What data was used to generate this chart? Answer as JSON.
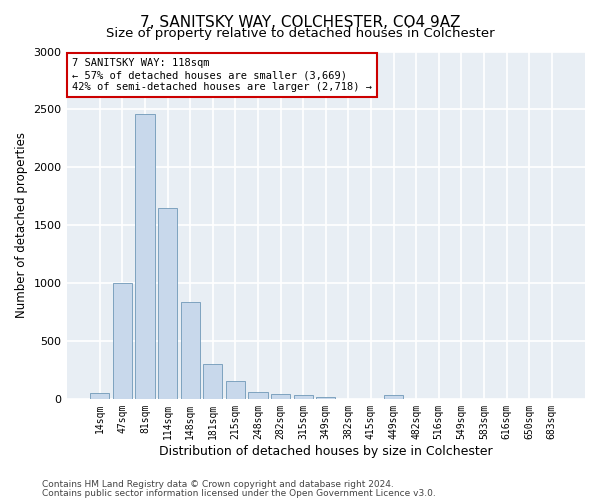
{
  "title": "7, SANITSKY WAY, COLCHESTER, CO4 9AZ",
  "subtitle": "Size of property relative to detached houses in Colchester",
  "xlabel": "Distribution of detached houses by size in Colchester",
  "ylabel": "Number of detached properties",
  "categories": [
    "14sqm",
    "47sqm",
    "81sqm",
    "114sqm",
    "148sqm",
    "181sqm",
    "215sqm",
    "248sqm",
    "282sqm",
    "315sqm",
    "349sqm",
    "382sqm",
    "415sqm",
    "449sqm",
    "482sqm",
    "516sqm",
    "549sqm",
    "583sqm",
    "616sqm",
    "650sqm",
    "683sqm"
  ],
  "values": [
    50,
    1000,
    2460,
    1650,
    840,
    300,
    150,
    55,
    40,
    30,
    20,
    0,
    0,
    30,
    0,
    0,
    0,
    0,
    0,
    0,
    0
  ],
  "bar_color": "#c8d8eb",
  "bar_edge_color": "#7098b8",
  "annotation_text": "7 SANITSKY WAY: 118sqm\n← 57% of detached houses are smaller (3,669)\n42% of semi-detached houses are larger (2,718) →",
  "annotation_box_color": "#ffffff",
  "annotation_box_edge_color": "#cc0000",
  "ylim": [
    0,
    3000
  ],
  "yticks": [
    0,
    500,
    1000,
    1500,
    2000,
    2500,
    3000
  ],
  "footer_line1": "Contains HM Land Registry data © Crown copyright and database right 2024.",
  "footer_line2": "Contains public sector information licensed under the Open Government Licence v3.0.",
  "bg_color": "#ffffff",
  "plot_bg_color": "#e8eef4",
  "grid_color": "#ffffff",
  "title_fontsize": 11,
  "subtitle_fontsize": 9.5,
  "ylabel_fontsize": 8.5,
  "xlabel_fontsize": 9,
  "tick_fontsize": 7,
  "footer_fontsize": 6.5,
  "annotation_fontsize": 7.5
}
